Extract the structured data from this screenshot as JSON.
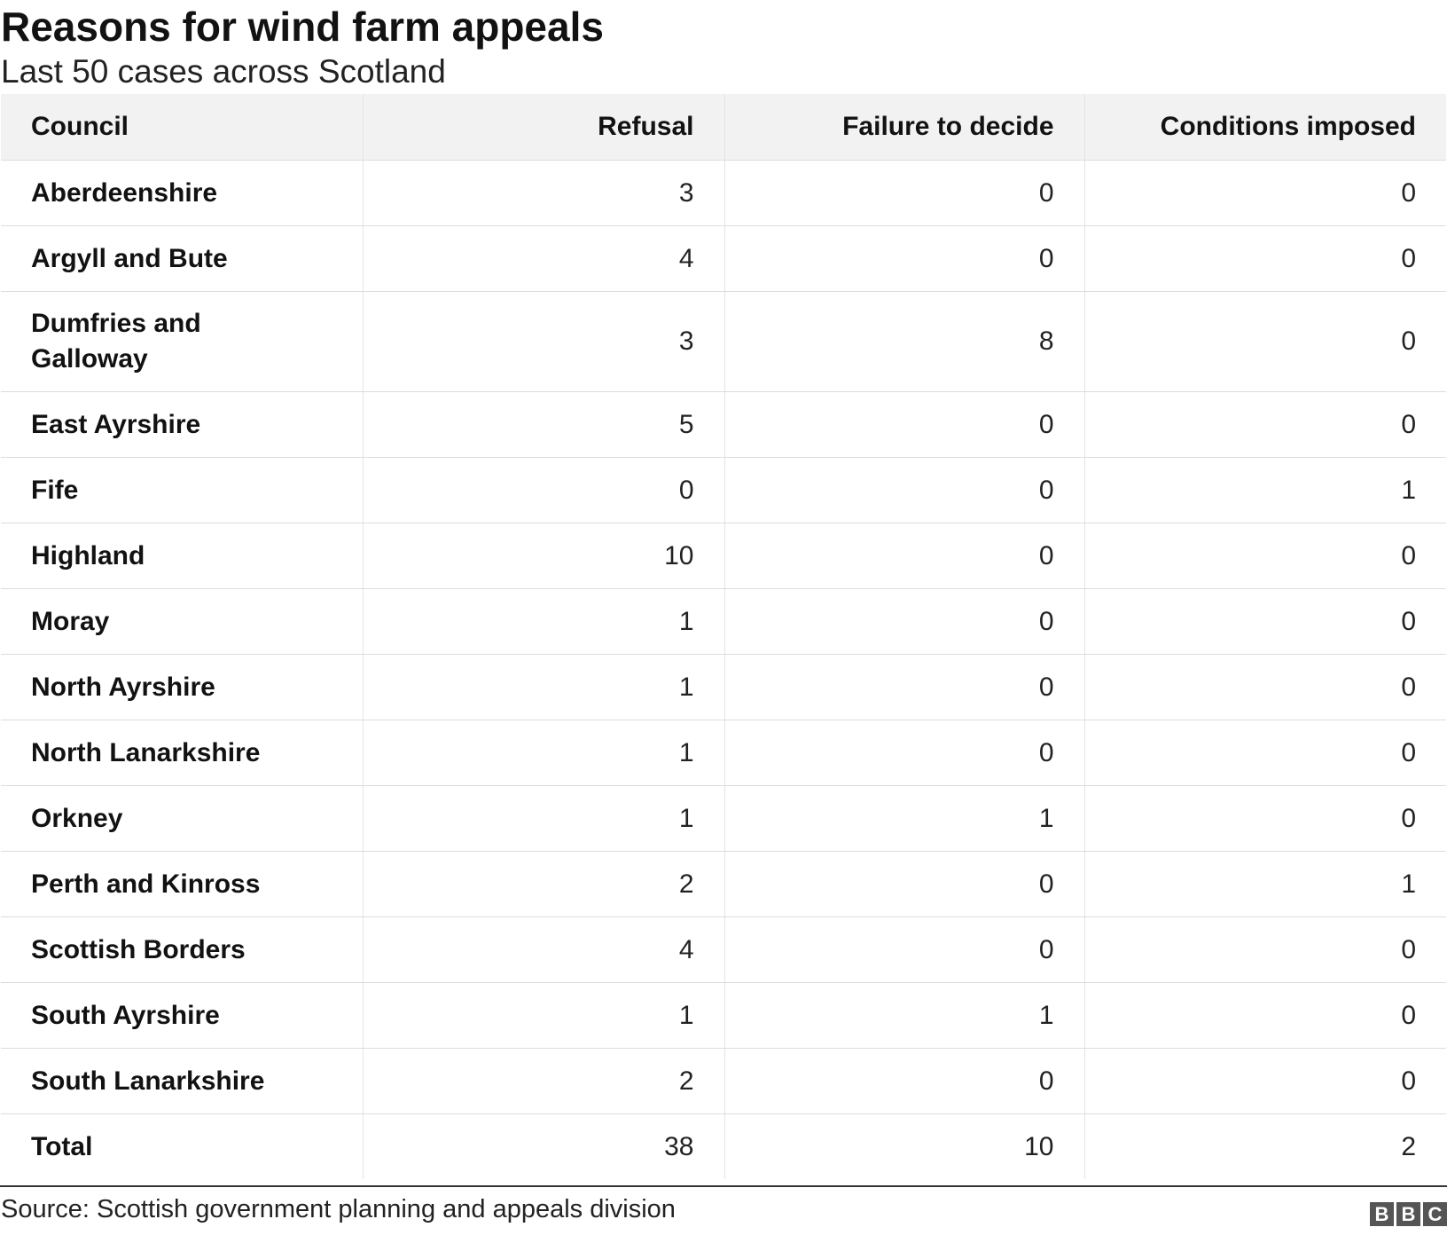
{
  "chart_data": {
    "type": "table",
    "title": "Reasons for wind farm appeals",
    "subtitle": "Last 50 cases across Scotland",
    "columns": [
      "Council",
      "Refusal",
      "Failure to decide",
      "Conditions imposed"
    ],
    "rows": [
      {
        "council": "Aberdeenshire",
        "refusal": "3",
        "failure": "0",
        "conditions": "0"
      },
      {
        "council": "Argyll and Bute",
        "refusal": "4",
        "failure": "0",
        "conditions": "0"
      },
      {
        "council": "Dumfries and Galloway",
        "refusal": "3",
        "failure": "8",
        "conditions": "0"
      },
      {
        "council": "East Ayrshire",
        "refusal": "5",
        "failure": "0",
        "conditions": "0"
      },
      {
        "council": "Fife",
        "refusal": "0",
        "failure": "0",
        "conditions": "1"
      },
      {
        "council": "Highland",
        "refusal": "10",
        "failure": "0",
        "conditions": "0"
      },
      {
        "council": "Moray",
        "refusal": "1",
        "failure": "0",
        "conditions": "0"
      },
      {
        "council": "North Ayrshire",
        "refusal": "1",
        "failure": "0",
        "conditions": "0"
      },
      {
        "council": "North Lanarkshire",
        "refusal": "1",
        "failure": "0",
        "conditions": "0"
      },
      {
        "council": "Orkney",
        "refusal": "1",
        "failure": "1",
        "conditions": "0"
      },
      {
        "council": "Perth and Kinross",
        "refusal": "2",
        "failure": "0",
        "conditions": "1"
      },
      {
        "council": "Scottish Borders",
        "refusal": "4",
        "failure": "0",
        "conditions": "0"
      },
      {
        "council": "South Ayrshire",
        "refusal": "1",
        "failure": "1",
        "conditions": "0"
      },
      {
        "council": "South Lanarkshire",
        "refusal": "2",
        "failure": "0",
        "conditions": "0"
      },
      {
        "council": "Total",
        "refusal": "38",
        "failure": "10",
        "conditions": "2"
      }
    ],
    "source": "Source: Scottish government planning and appeals division"
  },
  "branding": {
    "logo_letters": [
      "B",
      "B",
      "C"
    ],
    "logo_color": "#555555"
  }
}
